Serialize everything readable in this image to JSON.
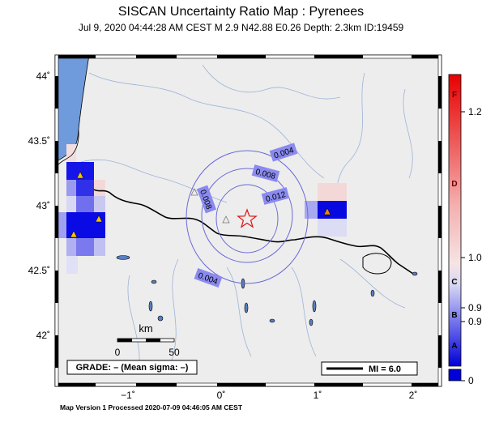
{
  "title": "SISCAN Uncertainty Ratio Map : Pyrenees",
  "subtitle": "Jul  9, 2020 04:44:28 AM CEST   M 2.9   N42.88 E0.26   Depth: 2.3km   ID:19459",
  "footer": "Map Version 1 Processed 2020-07-09 04:46:05 AM CEST",
  "lat_labels": [
    "44˚",
    "43.5˚",
    "43˚",
    "42.5˚",
    "42˚"
  ],
  "lon_labels": [
    "−1˚",
    "0˚",
    "1˚",
    "2˚"
  ],
  "contours": [
    "0.004",
    "0.008",
    "0.008",
    "0.012",
    "0.004"
  ],
  "scale": {
    "unit": "km",
    "start": "0",
    "end": "50"
  },
  "grade_box": "GRADE: – (Mean sigma: –)",
  "mi_legend": "MI = 6.0",
  "colorbar_grades": [
    "F",
    "D",
    "C",
    "B",
    "A"
  ],
  "colorbar_values": [
    "1.2",
    "1.0",
    "0.9",
    "0.9",
    "0"
  ],
  "colors": {
    "map_bg": "#ededed",
    "sea": "#6f9bdc",
    "contour": "#6a6ad8",
    "label_bg": "#8a8af0",
    "epicenter": "#e01010",
    "station": "#f4c400"
  }
}
